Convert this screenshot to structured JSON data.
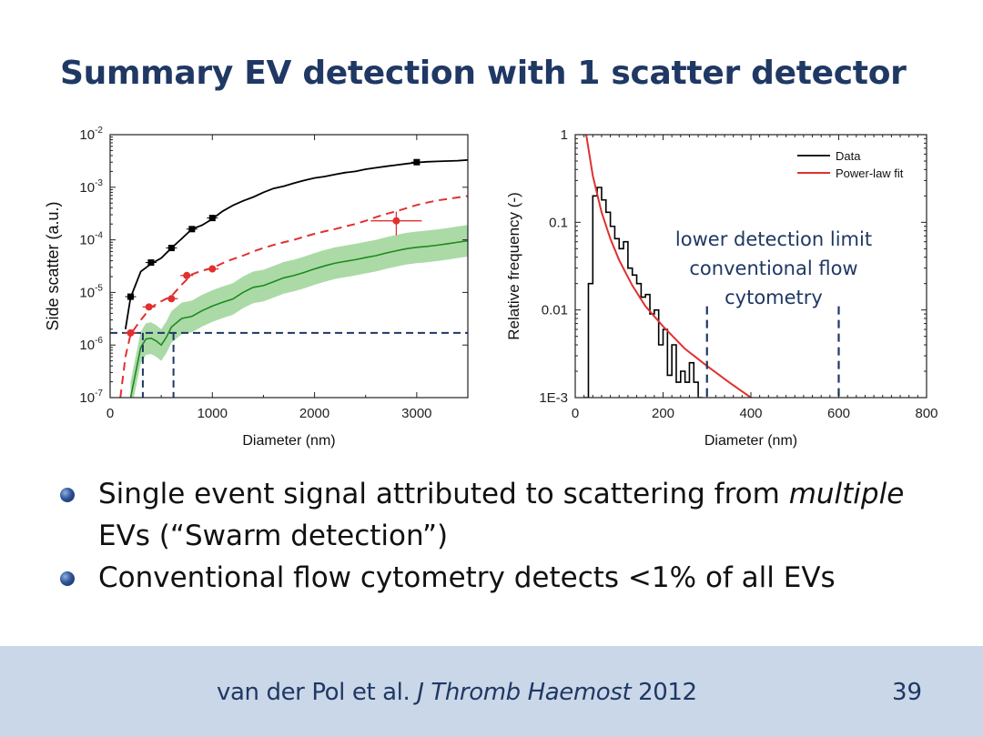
{
  "title": "Summary EV detection with 1 scatter detector",
  "bullets": [
    {
      "parts": [
        {
          "text": "Single event signal attributed to scattering from ",
          "italic": false
        },
        {
          "text": "multiple",
          "italic": true
        },
        {
          "text": " EVs (“Swarm detection”)",
          "italic": false
        }
      ]
    },
    {
      "parts": [
        {
          "text": "Conventional flow cytometry detects <1% of all EVs",
          "italic": false
        }
      ]
    }
  ],
  "footer": {
    "citation_parts": [
      {
        "text": "van der Pol et al. ",
        "italic": false
      },
      {
        "text": "J Thromb Haemost",
        "italic": true
      },
      {
        "text": " 2012",
        "italic": false
      }
    ],
    "page_number": "39"
  },
  "colors": {
    "title": "#1f3864",
    "black_series": "#000000",
    "red_series": "#e03030",
    "green_series": "#1e8a1e",
    "green_band": "#8fce8a",
    "guide_lines": "#1f3864",
    "footer_bg": "#c9d7e8"
  },
  "chart_data": [
    {
      "type": "line",
      "xlabel": "Diameter (nm)",
      "ylabel": "Side scatter (a.u.)",
      "xlim": [
        0,
        3500
      ],
      "ylim": [
        1e-07,
        0.01
      ],
      "yscale": "log",
      "x_ticks": [
        "0",
        "1000",
        "2000",
        "3000"
      ],
      "y_ticks": [
        {
          "base": "10",
          "exp": "-7"
        },
        {
          "base": "10",
          "exp": "-6"
        },
        {
          "base": "10",
          "exp": "-5"
        },
        {
          "base": "10",
          "exp": "-4"
        },
        {
          "base": "10",
          "exp": "-3"
        },
        {
          "base": "10",
          "exp": "-2"
        }
      ],
      "series": [
        {
          "style": "solid-black",
          "points": [
            [
              150,
              2e-06
            ],
            [
              200,
              8e-06
            ],
            [
              300,
              2.5e-05
            ],
            [
              400,
              3.5e-05
            ],
            [
              500,
              4.5e-05
            ],
            [
              600,
              7e-05
            ],
            [
              700,
              0.000105
            ],
            [
              800,
              0.00016
            ],
            [
              900,
              0.00019
            ],
            [
              1000,
              0.00025
            ],
            [
              1100,
              0.00035
            ],
            [
              1200,
              0.00045
            ],
            [
              1300,
              0.00055
            ],
            [
              1400,
              0.00065
            ],
            [
              1500,
              0.0008
            ],
            [
              1600,
              0.00095
            ],
            [
              1700,
              0.00105
            ],
            [
              1800,
              0.0012
            ],
            [
              1900,
              0.00135
            ],
            [
              2000,
              0.0015
            ],
            [
              2100,
              0.0016
            ],
            [
              2200,
              0.00175
            ],
            [
              2300,
              0.0019
            ],
            [
              2400,
              0.002
            ],
            [
              2500,
              0.0022
            ],
            [
              2600,
              0.00235
            ],
            [
              2700,
              0.0025
            ],
            [
              2800,
              0.00265
            ],
            [
              2900,
              0.0028
            ],
            [
              3000,
              0.00295
            ],
            [
              3100,
              0.00305
            ],
            [
              3200,
              0.0031
            ],
            [
              3300,
              0.00315
            ],
            [
              3400,
              0.0032
            ],
            [
              3500,
              0.0033
            ]
          ]
        },
        {
          "style": "dashed-red",
          "points": [
            [
              100,
              1e-07
            ],
            [
              150,
              6e-07
            ],
            [
              200,
              1.6e-06
            ],
            [
              300,
              3e-06
            ],
            [
              400,
              5.2e-06
            ],
            [
              500,
              6.8e-06
            ],
            [
              600,
              8.5e-06
            ],
            [
              700,
              1.4e-05
            ],
            [
              800,
              2.2e-05
            ],
            [
              900,
              2.6e-05
            ],
            [
              1000,
              2.9e-05
            ],
            [
              1100,
              3.6e-05
            ],
            [
              1200,
              4.3e-05
            ],
            [
              1300,
              5e-05
            ],
            [
              1400,
              6e-05
            ],
            [
              1500,
              7e-05
            ],
            [
              1600,
              8e-05
            ],
            [
              1700,
              9e-05
            ],
            [
              1800,
              0.0001
            ],
            [
              1900,
              0.000115
            ],
            [
              2000,
              0.00013
            ],
            [
              2100,
              0.000145
            ],
            [
              2200,
              0.00016
            ],
            [
              2300,
              0.00018
            ],
            [
              2400,
              0.0002
            ],
            [
              2500,
              0.00023
            ],
            [
              2600,
              0.00027
            ],
            [
              2700,
              0.00031
            ],
            [
              2800,
              0.00035
            ],
            [
              2900,
              0.0004
            ],
            [
              3000,
              0.00046
            ],
            [
              3100,
              0.00051
            ],
            [
              3200,
              0.00056
            ],
            [
              3300,
              0.0006
            ],
            [
              3400,
              0.00064
            ],
            [
              3500,
              0.00068
            ]
          ]
        },
        {
          "style": "solid-green",
          "band_factor": 2,
          "points": [
            [
              200,
              1e-07
            ],
            [
              250,
              3e-07
            ],
            [
              300,
              9e-07
            ],
            [
              350,
              1.3e-06
            ],
            [
              400,
              1.35e-06
            ],
            [
              450,
              1.2e-06
            ],
            [
              500,
              1e-06
            ],
            [
              550,
              1.4e-06
            ],
            [
              600,
              2.2e-06
            ],
            [
              700,
              3.2e-06
            ],
            [
              800,
              3.5e-06
            ],
            [
              900,
              4.5e-06
            ],
            [
              1000,
              5.5e-06
            ],
            [
              1100,
              6.5e-06
            ],
            [
              1200,
              7.5e-06
            ],
            [
              1300,
              1e-05
            ],
            [
              1400,
              1.25e-05
            ],
            [
              1500,
              1.35e-05
            ],
            [
              1600,
              1.6e-05
            ],
            [
              1700,
              1.9e-05
            ],
            [
              1800,
              2.1e-05
            ],
            [
              1900,
              2.4e-05
            ],
            [
              2000,
              2.8e-05
            ],
            [
              2100,
              3.2e-05
            ],
            [
              2200,
              3.6e-05
            ],
            [
              2300,
              3.9e-05
            ],
            [
              2400,
              4.2e-05
            ],
            [
              2500,
              4.6e-05
            ],
            [
              2600,
              5e-05
            ],
            [
              2700,
              5.6e-05
            ],
            [
              2800,
              6.2e-05
            ],
            [
              2900,
              6.8e-05
            ],
            [
              3000,
              7.2e-05
            ],
            [
              3100,
              7.5e-05
            ],
            [
              3200,
              7.9e-05
            ],
            [
              3300,
              8.4e-05
            ],
            [
              3400,
              9e-05
            ],
            [
              3500,
              9.6e-05
            ]
          ]
        },
        {
          "style": "markers-black",
          "points": [
            [
              200,
              8.3e-06
            ],
            [
              400,
              3.7e-05
            ],
            [
              600,
              7e-05
            ],
            [
              800,
              0.00016
            ],
            [
              1000,
              0.00026
            ],
            [
              3000,
              0.003
            ]
          ]
        },
        {
          "style": "markers-red",
          "points": [
            [
              200,
              1.7e-06
            ],
            [
              380,
              5.3e-06
            ],
            [
              600,
              7.6e-06
            ],
            [
              750,
              2.1e-05
            ],
            [
              1000,
              2.8e-05
            ],
            [
              2800,
              0.00023
            ]
          ]
        }
      ],
      "guide_lines": {
        "horizontal_y": 1.7e-06,
        "horizontal_x_to": 3500,
        "vertical_x": [
          320,
          620
        ]
      }
    },
    {
      "type": "line",
      "xlabel": "Diameter (nm)",
      "ylabel": "Relative frequency (-)",
      "xlim": [
        0,
        800
      ],
      "ylim": [
        0.001,
        1
      ],
      "yscale": "log",
      "x_ticks": [
        "0",
        "200",
        "400",
        "600",
        "800"
      ],
      "y_ticks": [
        "1E-3",
        "0.01",
        "0.1",
        "1"
      ],
      "legend_position": "top-right",
      "series": [
        {
          "name": "Data",
          "style": "step-black",
          "steps": [
            [
              20,
              0.001
            ],
            [
              30,
              0.02
            ],
            [
              40,
              0.2
            ],
            [
              50,
              0.25
            ],
            [
              60,
              0.18
            ],
            [
              70,
              0.13
            ],
            [
              80,
              0.09
            ],
            [
              90,
              0.065
            ],
            [
              100,
              0.05
            ],
            [
              110,
              0.06
            ],
            [
              120,
              0.03
            ],
            [
              130,
              0.025
            ],
            [
              140,
              0.02
            ],
            [
              150,
              0.014
            ],
            [
              160,
              0.015
            ],
            [
              170,
              0.009
            ],
            [
              180,
              0.01
            ],
            [
              190,
              0.004
            ],
            [
              200,
              0.006
            ],
            [
              210,
              0.0018
            ],
            [
              220,
              0.004
            ],
            [
              230,
              0.0015
            ],
            [
              240,
              0.002
            ],
            [
              250,
              0.0015
            ],
            [
              260,
              0.0025
            ],
            [
              270,
              0.0015
            ],
            [
              280,
              0.001
            ]
          ]
        },
        {
          "name": "Power-law fit",
          "style": "curve-red",
          "points": [
            [
              25,
              1
            ],
            [
              40,
              0.34
            ],
            [
              60,
              0.13
            ],
            [
              80,
              0.065
            ],
            [
              100,
              0.037
            ],
            [
              130,
              0.019
            ],
            [
              160,
              0.011
            ],
            [
              200,
              0.0065
            ],
            [
              250,
              0.0036
            ],
            [
              300,
              0.0023
            ],
            [
              350,
              0.0015
            ],
            [
              400,
              0.001
            ]
          ]
        }
      ],
      "annotation": [
        "lower detection limit",
        "conventional flow",
        "cytometry"
      ],
      "guide_lines": {
        "vertical_x": [
          300,
          600
        ],
        "y_from": 0.001,
        "y_to": 0.011
      }
    }
  ]
}
